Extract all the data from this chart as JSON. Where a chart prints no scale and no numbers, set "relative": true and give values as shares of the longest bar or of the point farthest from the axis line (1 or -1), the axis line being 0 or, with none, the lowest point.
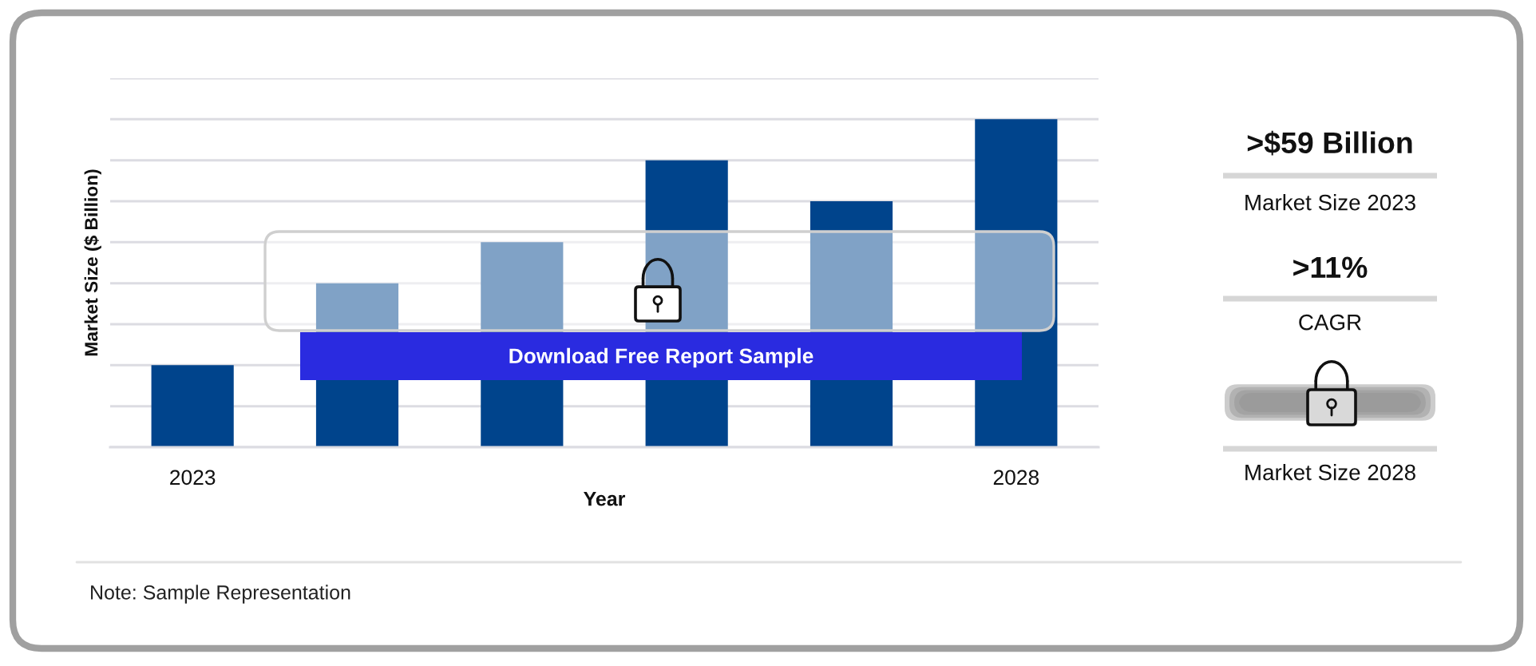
{
  "chart_data": [
    {
      "type": "bar",
      "categories": [
        "2023",
        null,
        null,
        null,
        null,
        "2028"
      ],
      "values": [
        0.25,
        0.5,
        0.625,
        0.875,
        0.75,
        1
      ],
      "relative": true,
      "color": "#00448c",
      "xlabel": "Year",
      "ylabel": "Market Size ($ Billion)",
      "grid": "y",
      "annotations": [
        "Download Free Report Sample",
        "Note: Sample Representation"
      ]
    },
    {
      "type": "other",
      "annotations": [
        ">$59 Billion",
        "Market Size 2023",
        ">11%",
        "CAGR",
        "Market Size 2028"
      ]
    }
  ]
}
